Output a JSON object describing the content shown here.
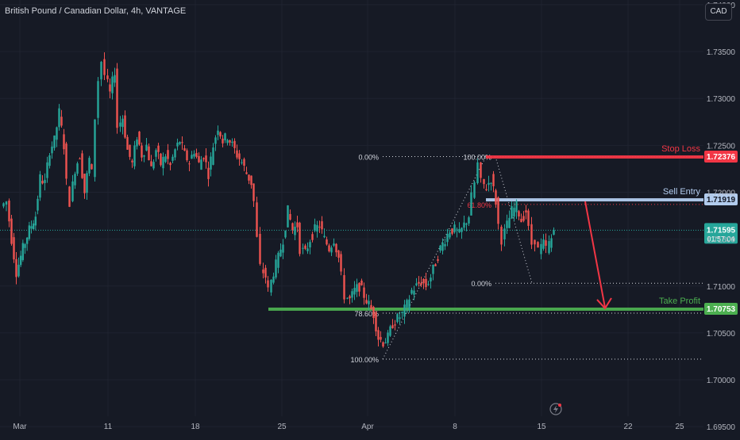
{
  "header": {
    "title": "British Pound / Canadian Dollar, 4h, VANTAGE",
    "currency_button": "CAD"
  },
  "colors": {
    "background": "#161a25",
    "bull": "#26a69a",
    "bear": "#ef5350",
    "stop_loss": "#f23645",
    "sell_entry": "#b2ccee",
    "take_profit": "#4caf50",
    "grid": "#1f2330",
    "text": "#b2b5be"
  },
  "chart_data": {
    "type": "candlestick",
    "timeframe": "4h",
    "ylim": [
      1.694,
      1.7405
    ],
    "y_ticks": [
      "1.74000",
      "1.73500",
      "1.73000",
      "1.72500",
      "1.72000",
      "1.71500",
      "1.71000",
      "1.70500",
      "1.70000",
      "1.69500"
    ],
    "x_ticks": [
      {
        "label": "Mar",
        "x": 25
      },
      {
        "label": "11",
        "x": 136
      },
      {
        "label": "18",
        "x": 246
      },
      {
        "label": "25",
        "x": 355
      },
      {
        "label": "Apr",
        "x": 463
      },
      {
        "label": "8",
        "x": 573
      },
      {
        "label": "15",
        "x": 682
      },
      {
        "label": "22",
        "x": 791
      },
      {
        "label": "25",
        "x": 856
      }
    ],
    "price_path": [
      [
        3,
        1.7185
      ],
      [
        10,
        1.719
      ],
      [
        16,
        1.715
      ],
      [
        22,
        1.7115
      ],
      [
        30,
        1.714
      ],
      [
        38,
        1.716
      ],
      [
        46,
        1.7175
      ],
      [
        52,
        1.7215
      ],
      [
        58,
        1.721
      ],
      [
        64,
        1.7245
      ],
      [
        70,
        1.7255
      ],
      [
        76,
        1.7285
      ],
      [
        82,
        1.725
      ],
      [
        86,
        1.721
      ],
      [
        90,
        1.719
      ],
      [
        96,
        1.7225
      ],
      [
        102,
        1.724
      ],
      [
        108,
        1.72
      ],
      [
        114,
        1.7235
      ],
      [
        118,
        1.722
      ],
      [
        122,
        1.728
      ],
      [
        126,
        1.732
      ],
      [
        130,
        1.734
      ],
      [
        134,
        1.7325
      ],
      [
        140,
        1.7305
      ],
      [
        146,
        1.733
      ],
      [
        150,
        1.727
      ],
      [
        156,
        1.728
      ],
      [
        162,
        1.7245
      ],
      [
        168,
        1.723
      ],
      [
        174,
        1.726
      ],
      [
        180,
        1.724
      ],
      [
        186,
        1.725
      ],
      [
        192,
        1.7225
      ],
      [
        198,
        1.7245
      ],
      [
        204,
        1.723
      ],
      [
        210,
        1.724
      ],
      [
        216,
        1.7228
      ],
      [
        222,
        1.7245
      ],
      [
        228,
        1.7255
      ],
      [
        234,
        1.724
      ],
      [
        240,
        1.7232
      ],
      [
        246,
        1.7245
      ],
      [
        252,
        1.723
      ],
      [
        258,
        1.724
      ],
      [
        264,
        1.722
      ],
      [
        270,
        1.725
      ],
      [
        276,
        1.727
      ],
      [
        282,
        1.7255
      ],
      [
        288,
        1.726
      ],
      [
        294,
        1.725
      ],
      [
        300,
        1.724
      ],
      [
        306,
        1.7232
      ],
      [
        312,
        1.722
      ],
      [
        318,
        1.721
      ],
      [
        322,
        1.719
      ],
      [
        326,
        1.715
      ],
      [
        330,
        1.712
      ],
      [
        336,
        1.711
      ],
      [
        340,
        1.7095
      ],
      [
        346,
        1.7115
      ],
      [
        352,
        1.713
      ],
      [
        358,
        1.715
      ],
      [
        364,
        1.718
      ],
      [
        370,
        1.716
      ],
      [
        376,
        1.7165
      ],
      [
        380,
        1.714
      ],
      [
        386,
        1.7135
      ],
      [
        392,
        1.715
      ],
      [
        398,
        1.716
      ],
      [
        404,
        1.7165
      ],
      [
        410,
        1.715
      ],
      [
        416,
        1.714
      ],
      [
        422,
        1.715
      ],
      [
        428,
        1.713
      ],
      [
        432,
        1.711
      ],
      [
        436,
        1.709
      ],
      [
        442,
        1.7085
      ],
      [
        448,
        1.7095
      ],
      [
        454,
        1.71
      ],
      [
        460,
        1.709
      ],
      [
        466,
        1.708
      ],
      [
        472,
        1.707
      ],
      [
        478,
        1.7045
      ],
      [
        484,
        1.704
      ],
      [
        490,
        1.7045
      ],
      [
        496,
        1.706
      ],
      [
        502,
        1.7065
      ],
      [
        508,
        1.707
      ],
      [
        514,
        1.708
      ],
      [
        520,
        1.7095
      ],
      [
        526,
        1.71
      ],
      [
        532,
        1.7105
      ],
      [
        538,
        1.71
      ],
      [
        544,
        1.711
      ],
      [
        550,
        1.7125
      ],
      [
        556,
        1.714
      ],
      [
        562,
        1.715
      ],
      [
        568,
        1.716
      ],
      [
        574,
        1.716
      ],
      [
        580,
        1.7155
      ],
      [
        586,
        1.7165
      ],
      [
        592,
        1.7175
      ],
      [
        596,
        1.7195
      ],
      [
        600,
        1.721
      ],
      [
        604,
        1.723
      ],
      [
        608,
        1.721
      ],
      [
        614,
        1.7205
      ],
      [
        620,
        1.7215
      ],
      [
        626,
        1.719
      ],
      [
        630,
        1.7165
      ],
      [
        634,
        1.715
      ],
      [
        640,
        1.7165
      ],
      [
        646,
        1.718
      ],
      [
        652,
        1.7185
      ],
      [
        658,
        1.717
      ],
      [
        664,
        1.718
      ],
      [
        668,
        1.716
      ],
      [
        672,
        1.7145
      ],
      [
        676,
        1.715
      ],
      [
        680,
        1.7138
      ],
      [
        686,
        1.7145
      ],
      [
        690,
        1.714
      ],
      [
        696,
        1.715
      ],
      [
        700,
        1.716
      ]
    ],
    "current_price": {
      "value": 1.71595,
      "label": "1.71595",
      "countdown": "01:57:04"
    },
    "levels": [
      {
        "name": "Stop Loss",
        "label": "Stop Loss",
        "price": 1.72376,
        "price_label": "1.72376",
        "color": "#f23645"
      },
      {
        "name": "Sell Entry",
        "label": "Sell Entry",
        "price": 1.71919,
        "price_label": "1.71919",
        "color": "#b2ccee"
      },
      {
        "name": "Take Profit",
        "label": "Take Profit",
        "price": 1.70753,
        "price_label": "1.70753",
        "color": "#4caf50"
      }
    ],
    "fib_left": {
      "levels": [
        {
          "label": "0.00%",
          "price": 1.7238
        },
        {
          "label": "78.60%",
          "price": 1.7071
        },
        {
          "label": "100.00%",
          "price": 1.7022
        }
      ]
    },
    "fib_right": {
      "levels": [
        {
          "label": "100.00%",
          "price": 1.7238
        },
        {
          "label": "61.80%",
          "price": 1.7187
        },
        {
          "label": "0.00%",
          "price": 1.7103
        }
      ]
    }
  }
}
